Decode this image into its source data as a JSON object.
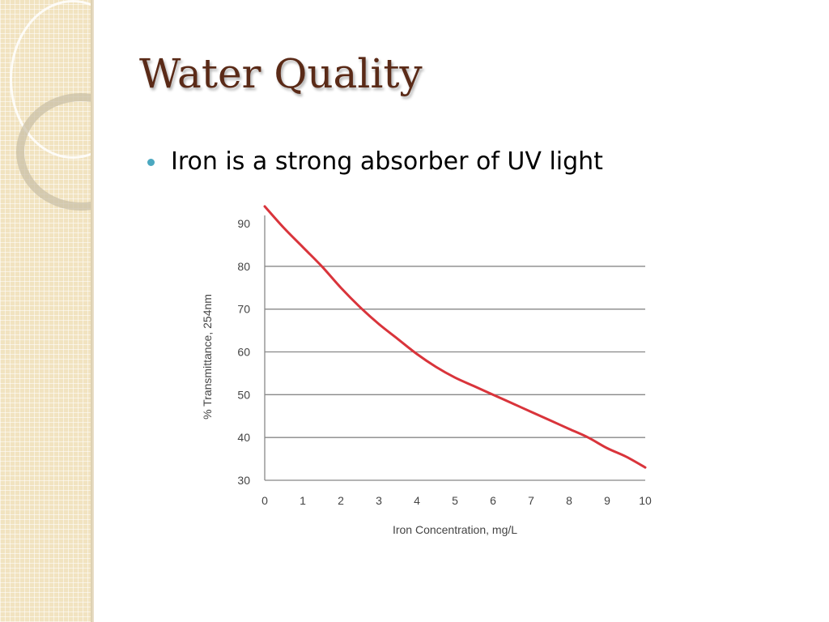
{
  "slide": {
    "title": "Water Quality",
    "bullets": [
      "Iron is a strong absorber of UV light"
    ]
  },
  "colors": {
    "title": "#5a2a17",
    "bullet": "#4ba8c0",
    "curve": "#d9343b",
    "gridline": "#888888"
  },
  "chart_data": {
    "type": "line",
    "title": "",
    "xlabel": "Iron Concentration, mg/L",
    "ylabel": "% Transmittance, 254nm",
    "xlim": [
      0,
      10
    ],
    "ylim": [
      30,
      90
    ],
    "x_ticks": [
      0,
      1,
      2,
      3,
      4,
      5,
      6,
      7,
      8,
      9,
      10
    ],
    "y_ticks": [
      90,
      80,
      70,
      60,
      50,
      40,
      30
    ],
    "y_gridlines": [
      80,
      70,
      60,
      50,
      40
    ],
    "grid": "horizontal",
    "legend": "none",
    "series": [
      {
        "x": [
          0,
          0.5,
          1,
          1.5,
          2,
          2.5,
          3,
          3.5,
          4,
          4.5,
          5,
          5.5,
          6,
          6.5,
          7,
          7.5,
          8,
          8.5,
          9,
          9.5,
          10
        ],
        "y": [
          94,
          89,
          84.5,
          80,
          75,
          70.5,
          66.5,
          63,
          59.5,
          56.5,
          54,
          52,
          50,
          48,
          46,
          44,
          42,
          40,
          37.5,
          35.5,
          33
        ]
      }
    ]
  }
}
